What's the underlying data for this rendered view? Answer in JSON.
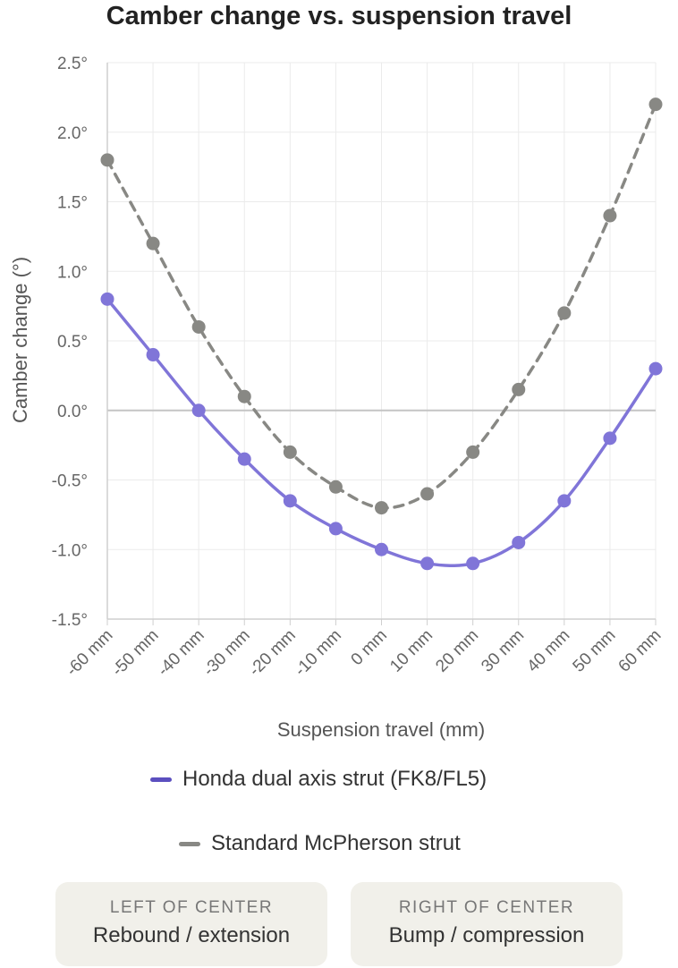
{
  "chart_data": {
    "type": "line",
    "title": "Camber change vs. suspension travel",
    "xlabel": "Suspension travel (mm)",
    "ylabel": "Camber change (°)",
    "x": [
      -60,
      -50,
      -40,
      -30,
      -20,
      -10,
      0,
      10,
      20,
      30,
      40,
      50,
      60
    ],
    "x_tick_labels": [
      "-60 mm",
      "-50 mm",
      "-40 mm",
      "-30 mm",
      "-20 mm",
      "-10 mm",
      "0 mm",
      "10 mm",
      "20 mm",
      "30 mm",
      "40 mm",
      "50 mm",
      "60 mm"
    ],
    "ylim": [
      -1.5,
      2.5
    ],
    "y_ticks": [
      2.5,
      2.0,
      1.5,
      1.0,
      0.5,
      0.0,
      -0.5,
      -1.0,
      -1.5
    ],
    "y_tick_labels": [
      "2.5°",
      "2.0°",
      "1.5°",
      "1.0°",
      "0.5°",
      "0.0°",
      "-0.5°",
      "-1.0°",
      "-1.5°"
    ],
    "grid": true,
    "legend_position": "bottom",
    "series": [
      {
        "name": "Honda dual axis strut (FK8/FL5)",
        "color": "#8075d8",
        "line_style": "solid",
        "values": [
          0.8,
          0.4,
          0.0,
          -0.35,
          -0.65,
          -0.85,
          -1.0,
          -1.1,
          -1.1,
          -0.95,
          -0.65,
          -0.2,
          0.3
        ]
      },
      {
        "name": "Standard McPherson strut",
        "color": "#888884",
        "line_style": "dashed",
        "values": [
          1.8,
          1.2,
          0.6,
          0.1,
          -0.3,
          -0.55,
          -0.7,
          -0.6,
          -0.3,
          0.15,
          0.7,
          1.4,
          2.2
        ]
      }
    ]
  },
  "legend": {
    "honda_label": "Honda dual axis strut (FK8/FL5)",
    "honda_color": "#5b4fbf",
    "mcpherson_label": "Standard McPherson strut",
    "mcpherson_color": "#888884"
  },
  "notes": {
    "left_heading": "LEFT OF CENTER",
    "left_text": "Rebound / extension",
    "right_heading": "RIGHT OF CENTER",
    "right_text": "Bump / compression"
  }
}
